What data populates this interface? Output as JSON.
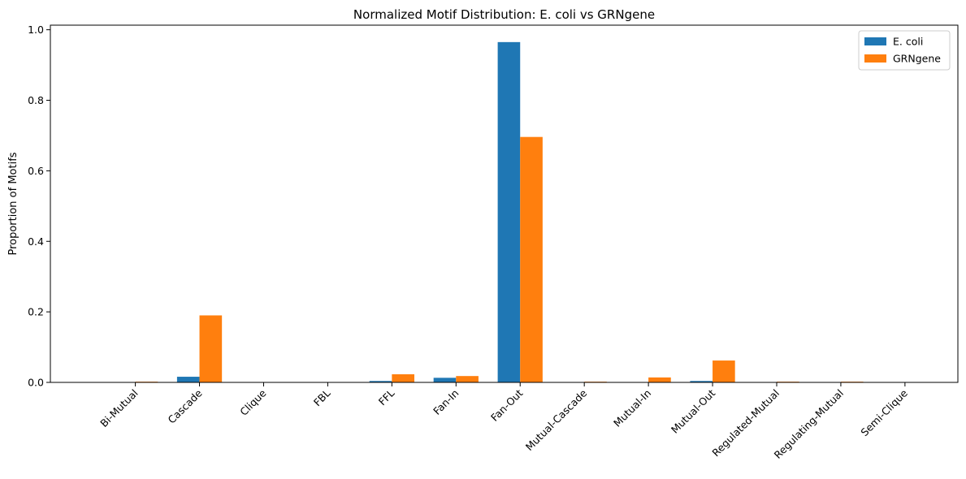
{
  "chart_data": {
    "type": "bar",
    "title": "Normalized Motif Distribution: E. coli vs GRNgene",
    "xlabel": "",
    "ylabel": "Proportion of Motifs",
    "ylim": [
      0,
      1.013
    ],
    "yticks": [
      0.0,
      0.2,
      0.4,
      0.6,
      0.8,
      1.0
    ],
    "ytick_labels": [
      "0.0",
      "0.2",
      "0.4",
      "0.6",
      "0.8",
      "1.0"
    ],
    "categories": [
      "Bi-Mutual",
      "Cascade",
      "Clique",
      "FBL",
      "FFL",
      "Fan-In",
      "Fan-Out",
      "Mutual-Cascade",
      "Mutual-In",
      "Mutual-Out",
      "Regulated-Mutual",
      "Regulating-Mutual",
      "Semi-Clique"
    ],
    "series": [
      {
        "name": "E. coli",
        "color": "#1f77b4",
        "values": [
          0.0,
          0.016,
          0.0,
          0.0,
          0.004,
          0.013,
          0.965,
          0.0,
          0.0,
          0.004,
          0.001,
          0.0,
          0.0
        ]
      },
      {
        "name": "GRNgene",
        "color": "#ff7f0e",
        "values": [
          0.002,
          0.19,
          0.0,
          0.0,
          0.023,
          0.018,
          0.696,
          0.002,
          0.014,
          0.062,
          0.002,
          0.002,
          0.0
        ]
      }
    ],
    "legend_position": "top-right",
    "grid": false
  }
}
